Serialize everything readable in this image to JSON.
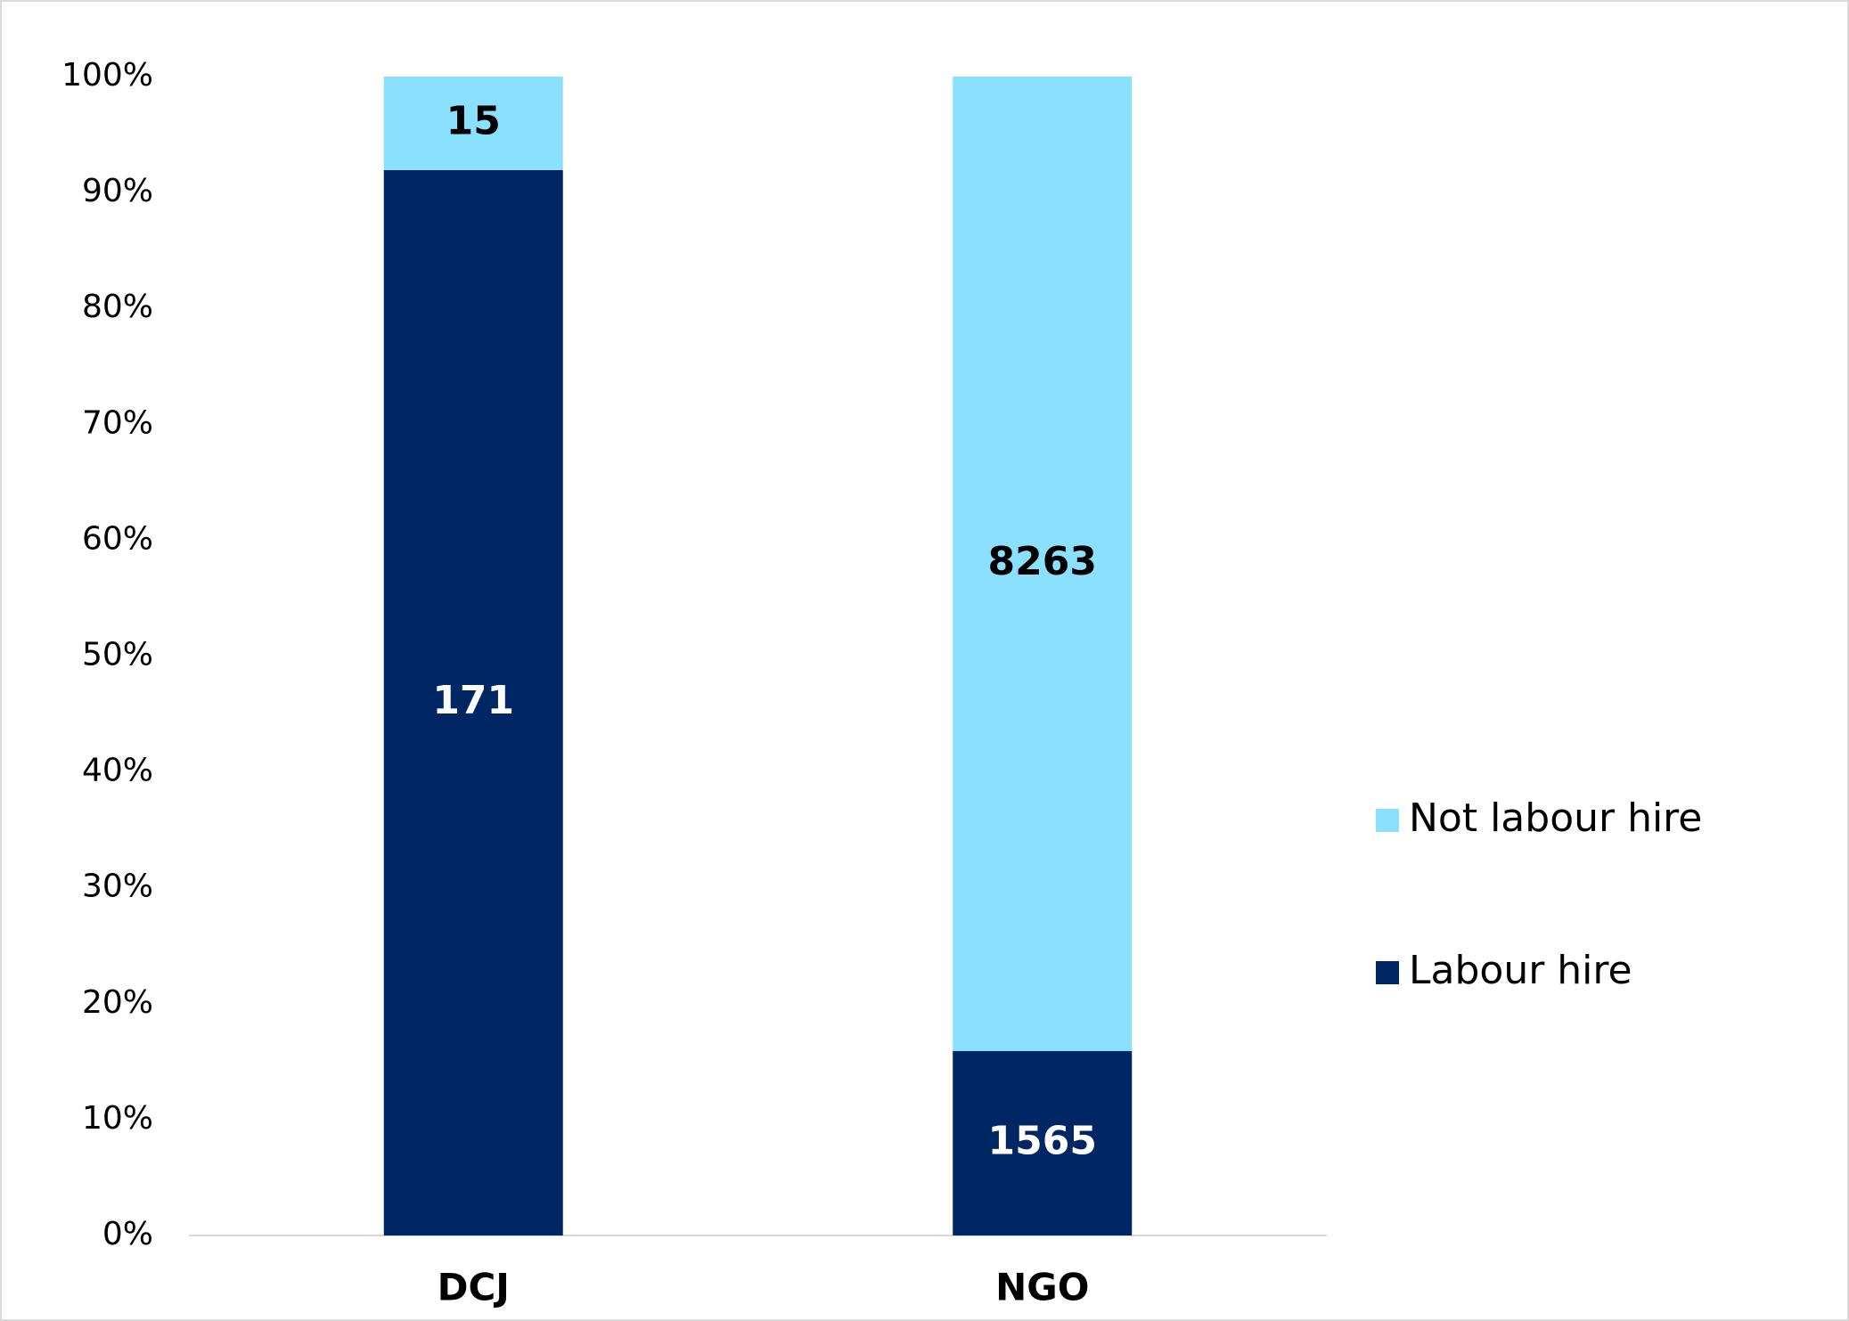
{
  "chart_data": {
    "type": "bar",
    "stacked": "percent",
    "categories": [
      "DCJ",
      "NGO"
    ],
    "series": [
      {
        "name": "Labour hire",
        "color": "#002664",
        "label_color": "#ffffff",
        "values": [
          171,
          1565
        ]
      },
      {
        "name": "Not labour hire",
        "color": "#8ce0ff",
        "label_color": "#000000",
        "values": [
          15,
          8263
        ]
      }
    ],
    "ylim": [
      0,
      100
    ],
    "yticks": [
      {
        "value": 0,
        "label": "0%"
      },
      {
        "value": 10,
        "label": "10%"
      },
      {
        "value": 20,
        "label": "20%"
      },
      {
        "value": 30,
        "label": "30%"
      },
      {
        "value": 40,
        "label": "40%"
      },
      {
        "value": 50,
        "label": "50%"
      },
      {
        "value": 60,
        "label": "60%"
      },
      {
        "value": 70,
        "label": "70%"
      },
      {
        "value": 80,
        "label": "80%"
      },
      {
        "value": 90,
        "label": "90%"
      },
      {
        "value": 100,
        "label": "100%"
      }
    ],
    "grid": false,
    "legend": "right"
  }
}
